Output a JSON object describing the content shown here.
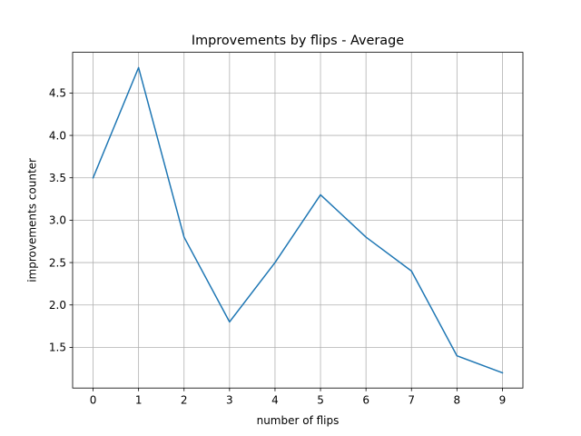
{
  "chart_data": {
    "type": "line",
    "title": "Improvements by flips - Average",
    "xlabel": "number of flips",
    "ylabel": "improvements counter",
    "x": [
      0,
      1,
      2,
      3,
      4,
      5,
      6,
      7,
      8,
      9
    ],
    "series": [
      {
        "values": [
          3.5,
          4.8,
          2.8,
          1.8,
          2.5,
          3.3,
          2.8,
          2.4,
          1.4,
          1.2
        ]
      }
    ],
    "xticks": [
      0,
      1,
      2,
      3,
      4,
      5,
      6,
      7,
      8,
      9
    ],
    "yticks": [
      1.5,
      2.0,
      2.5,
      3.0,
      3.5,
      4.0,
      4.5
    ],
    "ytick_labels": [
      "1.5",
      "2.0",
      "2.5",
      "3.0",
      "3.5",
      "4.0",
      "4.5"
    ],
    "xlim": [
      -0.45,
      9.45
    ],
    "ylim": [
      1.02,
      4.98
    ],
    "grid": true,
    "colors": {
      "line": "#1f77b4",
      "grid": "#b0b0b0",
      "axis": "#000000"
    }
  }
}
